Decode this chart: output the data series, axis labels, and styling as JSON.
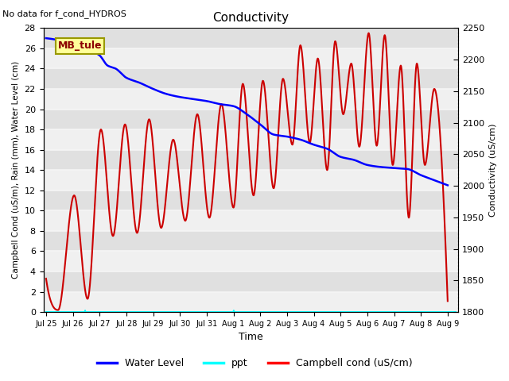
{
  "title": "Conductivity",
  "top_left_text": "No data for f_cond_HYDROS",
  "xlabel": "Time",
  "ylabel_left": "Campbell Cond (uS/m), Rain (mm), Water Level (cm)",
  "ylabel_right": "Conductivity (uS/cm)",
  "xlim_days": [
    -0.1,
    15.4
  ],
  "ylim_left": [
    0,
    28
  ],
  "ylim_right": [
    1800,
    2250
  ],
  "yticks_left": [
    0,
    2,
    4,
    6,
    8,
    10,
    12,
    14,
    16,
    18,
    20,
    22,
    24,
    26,
    28
  ],
  "yticks_right": [
    1800,
    1850,
    1900,
    1950,
    2000,
    2050,
    2100,
    2150,
    2200,
    2250
  ],
  "xtick_labels": [
    "Jul 25",
    "Jul 26",
    "Jul 27",
    "Jul 28",
    "Jul 29",
    "Jul 30",
    "Jul 31",
    "Aug 1",
    "Aug 2",
    "Aug 3",
    "Aug 4",
    "Aug 5",
    "Aug 6",
    "Aug 7",
    "Aug 8",
    "Aug 9"
  ],
  "xtick_positions": [
    0,
    1,
    2,
    3,
    4,
    5,
    6,
    7,
    8,
    9,
    10,
    11,
    12,
    13,
    14,
    15
  ],
  "box_label": "MB_tule",
  "background_color": "#e0e0e0",
  "grid_color": "#f5f5f5",
  "water_level_color": "#0000ff",
  "ppt_color": "#00ffff",
  "campbell_color": "#cc0000",
  "water_level_linewidth": 1.8,
  "campbell_linewidth": 1.5,
  "campbell_peaks": [
    [
      0.0,
      3.3
    ],
    [
      0.45,
      0.2
    ],
    [
      1.05,
      11.5
    ],
    [
      1.55,
      1.3
    ],
    [
      2.05,
      18.0
    ],
    [
      2.5,
      7.5
    ],
    [
      2.95,
      18.5
    ],
    [
      3.4,
      7.8
    ],
    [
      3.85,
      19.0
    ],
    [
      4.3,
      8.3
    ],
    [
      4.75,
      17.0
    ],
    [
      5.2,
      9.0
    ],
    [
      5.65,
      19.5
    ],
    [
      6.1,
      9.3
    ],
    [
      6.55,
      20.5
    ],
    [
      7.0,
      10.3
    ],
    [
      7.35,
      22.5
    ],
    [
      7.75,
      11.5
    ],
    [
      8.1,
      22.8
    ],
    [
      8.5,
      12.2
    ],
    [
      8.85,
      23.0
    ],
    [
      9.2,
      16.5
    ],
    [
      9.5,
      26.3
    ],
    [
      9.85,
      16.7
    ],
    [
      10.15,
      25.0
    ],
    [
      10.5,
      14.0
    ],
    [
      10.8,
      26.7
    ],
    [
      11.1,
      19.5
    ],
    [
      11.4,
      24.5
    ],
    [
      11.7,
      16.3
    ],
    [
      12.05,
      27.5
    ],
    [
      12.35,
      16.4
    ],
    [
      12.65,
      27.3
    ],
    [
      12.95,
      14.5
    ],
    [
      13.25,
      24.3
    ],
    [
      13.55,
      9.3
    ],
    [
      13.85,
      24.5
    ],
    [
      14.15,
      14.5
    ],
    [
      14.5,
      22.0
    ],
    [
      14.85,
      11.0
    ]
  ],
  "water_level_pts": [
    [
      0.0,
      27.0
    ],
    [
      0.5,
      26.8
    ],
    [
      1.0,
      26.5
    ],
    [
      1.5,
      26.0
    ],
    [
      2.0,
      25.3
    ],
    [
      2.3,
      24.3
    ],
    [
      2.6,
      24.0
    ],
    [
      3.0,
      23.1
    ],
    [
      3.5,
      22.6
    ],
    [
      4.0,
      22.0
    ],
    [
      4.5,
      21.5
    ],
    [
      5.0,
      21.2
    ],
    [
      5.5,
      21.0
    ],
    [
      6.0,
      20.8
    ],
    [
      6.5,
      20.5
    ],
    [
      7.0,
      20.3
    ],
    [
      7.5,
      19.5
    ],
    [
      8.0,
      18.5
    ],
    [
      8.5,
      17.5
    ],
    [
      9.0,
      17.3
    ],
    [
      9.5,
      17.0
    ],
    [
      10.0,
      16.5
    ],
    [
      10.5,
      16.1
    ],
    [
      11.0,
      15.3
    ],
    [
      11.5,
      15.0
    ],
    [
      12.0,
      14.5
    ],
    [
      12.5,
      14.3
    ],
    [
      13.0,
      14.2
    ],
    [
      13.5,
      14.1
    ],
    [
      14.0,
      13.5
    ],
    [
      14.5,
      13.0
    ],
    [
      15.0,
      12.5
    ]
  ],
  "ppt_pts": [
    [
      0.0,
      0.0
    ],
    [
      1.45,
      0.0
    ],
    [
      1.46,
      0.15
    ],
    [
      1.47,
      0.0
    ],
    [
      7.0,
      0.0
    ],
    [
      7.01,
      0.15
    ],
    [
      7.02,
      0.0
    ],
    [
      15.3,
      0.0
    ]
  ]
}
